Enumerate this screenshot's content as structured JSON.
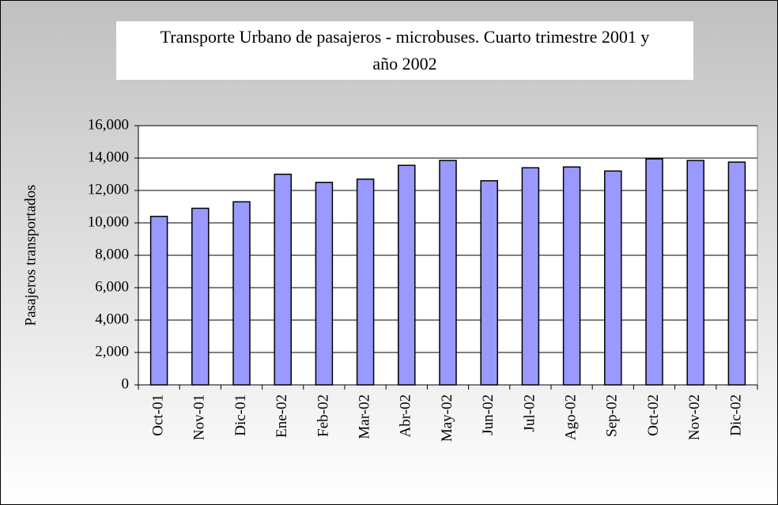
{
  "chart_data": {
    "type": "bar",
    "title": "Transporte Urbano de pasajeros - microbuses. Cuarto trimestre 2001 y año 2002",
    "y_label": "Pasajeros transportados",
    "categories": [
      "Oct-01",
      "Nov-01",
      "Dic-01",
      "Ene-02",
      "Feb-02",
      "Mar-02",
      "Abr-02",
      "May-02",
      "Jun-02",
      "Jul-02",
      "Ago-02",
      "Sep-02",
      "Oct-02",
      "Nov-02",
      "Dic-02"
    ],
    "values": [
      10400,
      10900,
      11300,
      13000,
      12500,
      12700,
      13550,
      13850,
      12600,
      13400,
      13450,
      13200,
      13950,
      13850,
      13750
    ],
    "color": "#9999ff",
    "ylim": [
      0,
      16000
    ],
    "yticks": [
      0,
      {
        "value": 2000,
        "label": "2,000"
      },
      {
        "value": 4000,
        "label": "4,000"
      },
      {
        "value": 6000,
        "label": "6,000"
      },
      {
        "value": 8000,
        "label": "8,000"
      },
      {
        "value": 10000,
        "label": "10,000"
      },
      {
        "value": 12000,
        "label": "12,000"
      },
      {
        "value": 14000,
        "label": "14,000"
      },
      {
        "value": 16000,
        "label": "16,000"
      }
    ],
    "grid": true
  }
}
